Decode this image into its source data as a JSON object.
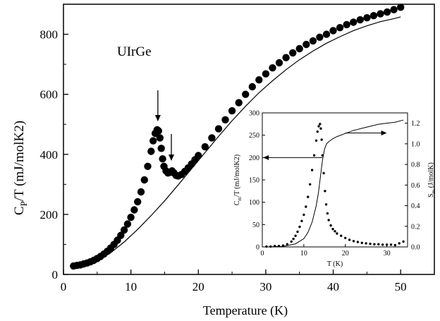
{
  "chart_data": [
    {
      "type": "scatter",
      "annotation": "UIrGe",
      "xlabel": "Temperature (K)",
      "ylabel": "C_P/T (mJ/molK2)",
      "ylabel_parts": {
        "main": "C",
        "sub": "P",
        "rest": "/T (mJ/molK2)"
      },
      "xlim": [
        0,
        55
      ],
      "ylim": [
        0,
        900
      ],
      "x_ticks": [
        0,
        10,
        20,
        30,
        40,
        50
      ],
      "y_ticks": [
        0,
        200,
        400,
        600,
        800
      ],
      "grid": false,
      "arrows_at_x": [
        14,
        16
      ],
      "series": [
        {
          "style": "markers",
          "points": [
            [
              1.5,
              28
            ],
            [
              2,
              30
            ],
            [
              2.5,
              32
            ],
            [
              3,
              35
            ],
            [
              3.5,
              38
            ],
            [
              4,
              42
            ],
            [
              4.5,
              47
            ],
            [
              5,
              53
            ],
            [
              5.5,
              60
            ],
            [
              6,
              68
            ],
            [
              6.5,
              77
            ],
            [
              7,
              88
            ],
            [
              7.5,
              100
            ],
            [
              8,
              114
            ],
            [
              8.5,
              130
            ],
            [
              9,
              148
            ],
            [
              9.5,
              168
            ],
            [
              10,
              190
            ],
            [
              10.5,
              215
            ],
            [
              11,
              242
            ],
            [
              11.5,
              275
            ],
            [
              12,
              315
            ],
            [
              12.5,
              360
            ],
            [
              13,
              410
            ],
            [
              13.3,
              445
            ],
            [
              13.6,
              470
            ],
            [
              13.9,
              482
            ],
            [
              14.1,
              478
            ],
            [
              14.3,
              455
            ],
            [
              14.5,
              420
            ],
            [
              14.7,
              385
            ],
            [
              14.9,
              360
            ],
            [
              15.2,
              345
            ],
            [
              15.5,
              338
            ],
            [
              15.8,
              340
            ],
            [
              16.1,
              345
            ],
            [
              16.4,
              338
            ],
            [
              16.7,
              330
            ],
            [
              17,
              328
            ],
            [
              17.5,
              333
            ],
            [
              18,
              343
            ],
            [
              18.5,
              355
            ],
            [
              19,
              368
            ],
            [
              19.5,
              382
            ],
            [
              20,
              396
            ],
            [
              21,
              425
            ],
            [
              22,
              455
            ],
            [
              23,
              485
            ],
            [
              24,
              515
            ],
            [
              25,
              545
            ],
            [
              26,
              572
            ],
            [
              27,
              600
            ],
            [
              28,
              625
            ],
            [
              29,
              648
            ],
            [
              30,
              668
            ],
            [
              31,
              688
            ],
            [
              32,
              705
            ],
            [
              33,
              722
            ],
            [
              34,
              738
            ],
            [
              35,
              752
            ],
            [
              36,
              766
            ],
            [
              37,
              778
            ],
            [
              38,
              790
            ],
            [
              39,
              800
            ],
            [
              40,
              812
            ],
            [
              41,
              822
            ],
            [
              42,
              832
            ],
            [
              43,
              840
            ],
            [
              44,
              848
            ],
            [
              45,
              855
            ],
            [
              46,
              862
            ],
            [
              47,
              868
            ],
            [
              48,
              874
            ],
            [
              49,
              882
            ],
            [
              50,
              890
            ]
          ]
        },
        {
          "style": "line",
          "points": [
            [
              1.5,
              26
            ],
            [
              3,
              31
            ],
            [
              5,
              45
            ],
            [
              7,
              72
            ],
            [
              9,
              108
            ],
            [
              11,
              150
            ],
            [
              13,
              196
            ],
            [
              15,
              245
            ],
            [
              17,
              298
            ],
            [
              19,
              352
            ],
            [
              21,
              406
            ],
            [
              23,
              460
            ],
            [
              25,
              512
            ],
            [
              27,
              560
            ],
            [
              29,
              605
            ],
            [
              31,
              645
            ],
            [
              33,
              682
            ],
            [
              35,
              715
            ],
            [
              37,
              744
            ],
            [
              39,
              770
            ],
            [
              41,
              792
            ],
            [
              43,
              812
            ],
            [
              45,
              828
            ],
            [
              47,
              842
            ],
            [
              49,
              852
            ],
            [
              50,
              858
            ]
          ]
        }
      ]
    },
    {
      "type": "scatter",
      "inset": true,
      "xlabel": "T (K)",
      "ylabel_left": "C_m/T (mJ/molK2)",
      "ylabel_left_parts": {
        "main": "C",
        "sub": "m",
        "rest": "/T (mJ/molK2)"
      },
      "ylabel_right": "S_m (J/molK)",
      "ylabel_right_parts": {
        "main": "S",
        "sub": "m",
        "rest": " (J/molK)"
      },
      "xlim": [
        0,
        35
      ],
      "ylim_left": [
        0,
        300
      ],
      "ylim_right": [
        0,
        1.3
      ],
      "x_ticks": [
        0,
        10,
        20,
        30
      ],
      "y_ticks_left": [
        0,
        50,
        100,
        150,
        200,
        250,
        300
      ],
      "y_ticks_right": [
        "0.0",
        "0.2",
        "0.4",
        "0.6",
        "0.8",
        "1.0",
        "1.2"
      ],
      "series": [
        {
          "style": "markers",
          "axis": "left",
          "points": [
            [
              1,
              1
            ],
            [
              2,
              1
            ],
            [
              3,
              2
            ],
            [
              4,
              2
            ],
            [
              5,
              3
            ],
            [
              6,
              6
            ],
            [
              7,
              12
            ],
            [
              7.5,
              18
            ],
            [
              8,
              25
            ],
            [
              8.5,
              34
            ],
            [
              9,
              45
            ],
            [
              9.5,
              58
            ],
            [
              10,
              72
            ],
            [
              10.5,
              90
            ],
            [
              11,
              112
            ],
            [
              11.5,
              140
            ],
            [
              12,
              172
            ],
            [
              12.5,
              205
            ],
            [
              13,
              238
            ],
            [
              13.3,
              258
            ],
            [
              13.6,
              270
            ],
            [
              13.9,
              275
            ],
            [
              14.1,
              265
            ],
            [
              14.3,
              240
            ],
            [
              14.5,
              205
            ],
            [
              14.8,
              165
            ],
            [
              15.1,
              125
            ],
            [
              15.4,
              95
            ],
            [
              15.7,
              75
            ],
            [
              16,
              60
            ],
            [
              16.5,
              48
            ],
            [
              17,
              40
            ],
            [
              17.5,
              35
            ],
            [
              18,
              30
            ],
            [
              19,
              25
            ],
            [
              20,
              20
            ],
            [
              21,
              16
            ],
            [
              22,
              13
            ],
            [
              23,
              11
            ],
            [
              24,
              9
            ],
            [
              25,
              8
            ],
            [
              26,
              7
            ],
            [
              27,
              6
            ],
            [
              28,
              6
            ],
            [
              29,
              5
            ],
            [
              30,
              5
            ],
            [
              31,
              5
            ],
            [
              32,
              4
            ],
            [
              33,
              8
            ],
            [
              34,
              12
            ]
          ]
        },
        {
          "style": "line",
          "axis": "right",
          "points": [
            [
              1,
              0
            ],
            [
              5,
              0.005
            ],
            [
              8,
              0.03
            ],
            [
              10,
              0.08
            ],
            [
              11,
              0.14
            ],
            [
              12,
              0.24
            ],
            [
              13,
              0.4
            ],
            [
              13.5,
              0.52
            ],
            [
              14,
              0.68
            ],
            [
              14.5,
              0.84
            ],
            [
              15,
              0.95
            ],
            [
              15.5,
              1.0
            ],
            [
              16,
              1.02
            ],
            [
              17,
              1.05
            ],
            [
              18,
              1.07
            ],
            [
              20,
              1.1
            ],
            [
              22,
              1.13
            ],
            [
              24,
              1.15
            ],
            [
              26,
              1.17
            ],
            [
              28,
              1.19
            ],
            [
              30,
              1.2
            ],
            [
              32,
              1.21
            ],
            [
              34,
              1.23
            ]
          ]
        }
      ],
      "arrows": [
        {
          "direction": "left",
          "from_x": 14.5,
          "to_x": 0.2,
          "y_left": 200
        },
        {
          "direction": "right",
          "from_x": 20,
          "to_x": 30,
          "y_left": 255
        }
      ]
    }
  ]
}
